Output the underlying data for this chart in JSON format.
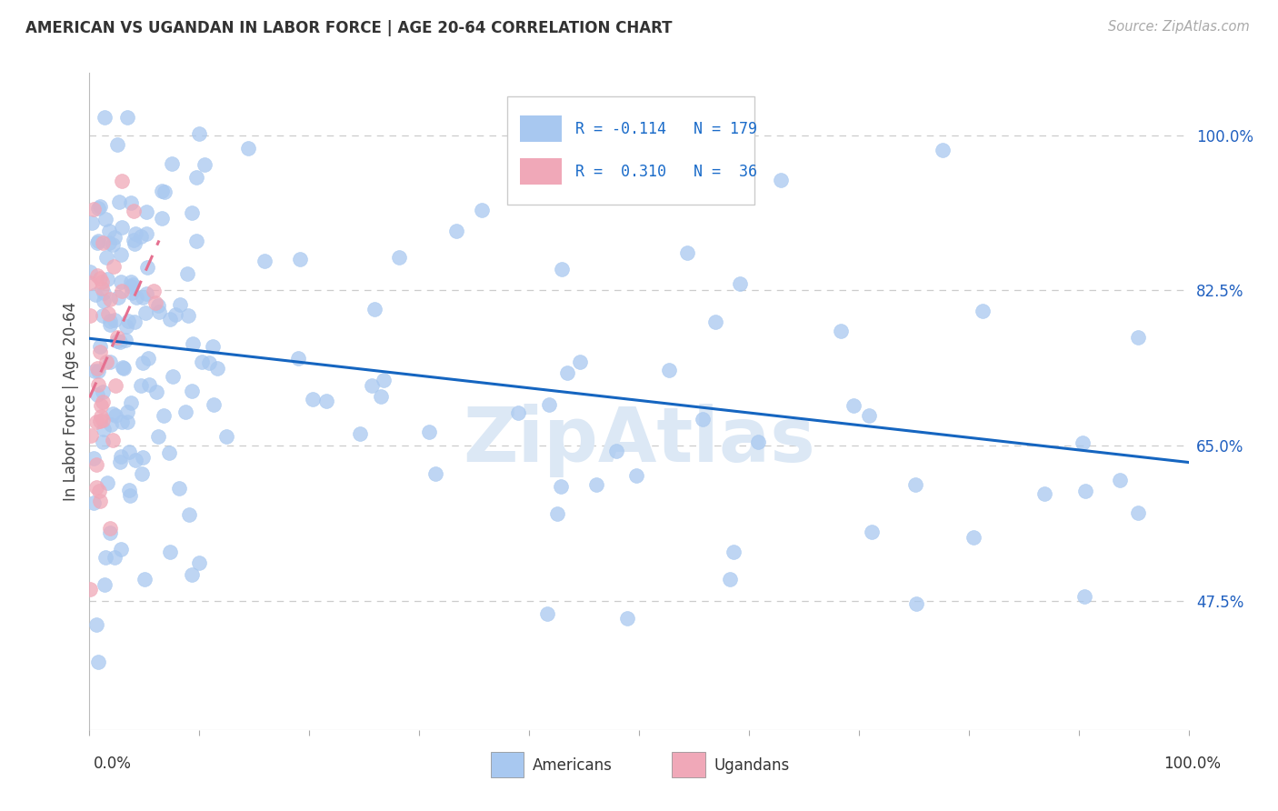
{
  "title": "AMERICAN VS UGANDAN IN LABOR FORCE | AGE 20-64 CORRELATION CHART",
  "source": "Source: ZipAtlas.com",
  "ylabel": "In Labor Force | Age 20-64",
  "ytick_labels": [
    "100.0%",
    "82.5%",
    "65.0%",
    "47.5%"
  ],
  "ytick_values": [
    1.0,
    0.825,
    0.65,
    0.475
  ],
  "xlim": [
    0.0,
    1.0
  ],
  "ylim": [
    0.33,
    1.07
  ],
  "legend_r_american": "-0.114",
  "legend_n_american": "179",
  "legend_r_ugandan": "0.310",
  "legend_n_ugandan": "36",
  "american_color": "#a8c8f0",
  "ugandan_color": "#f0a8b8",
  "american_line_color": "#1565c0",
  "ugandan_line_color": "#e57090",
  "watermark": "ZipAtlas",
  "watermark_color": "#dce8f5",
  "background_color": "#ffffff",
  "grid_color": "#cccccc",
  "rand_seed": 17
}
